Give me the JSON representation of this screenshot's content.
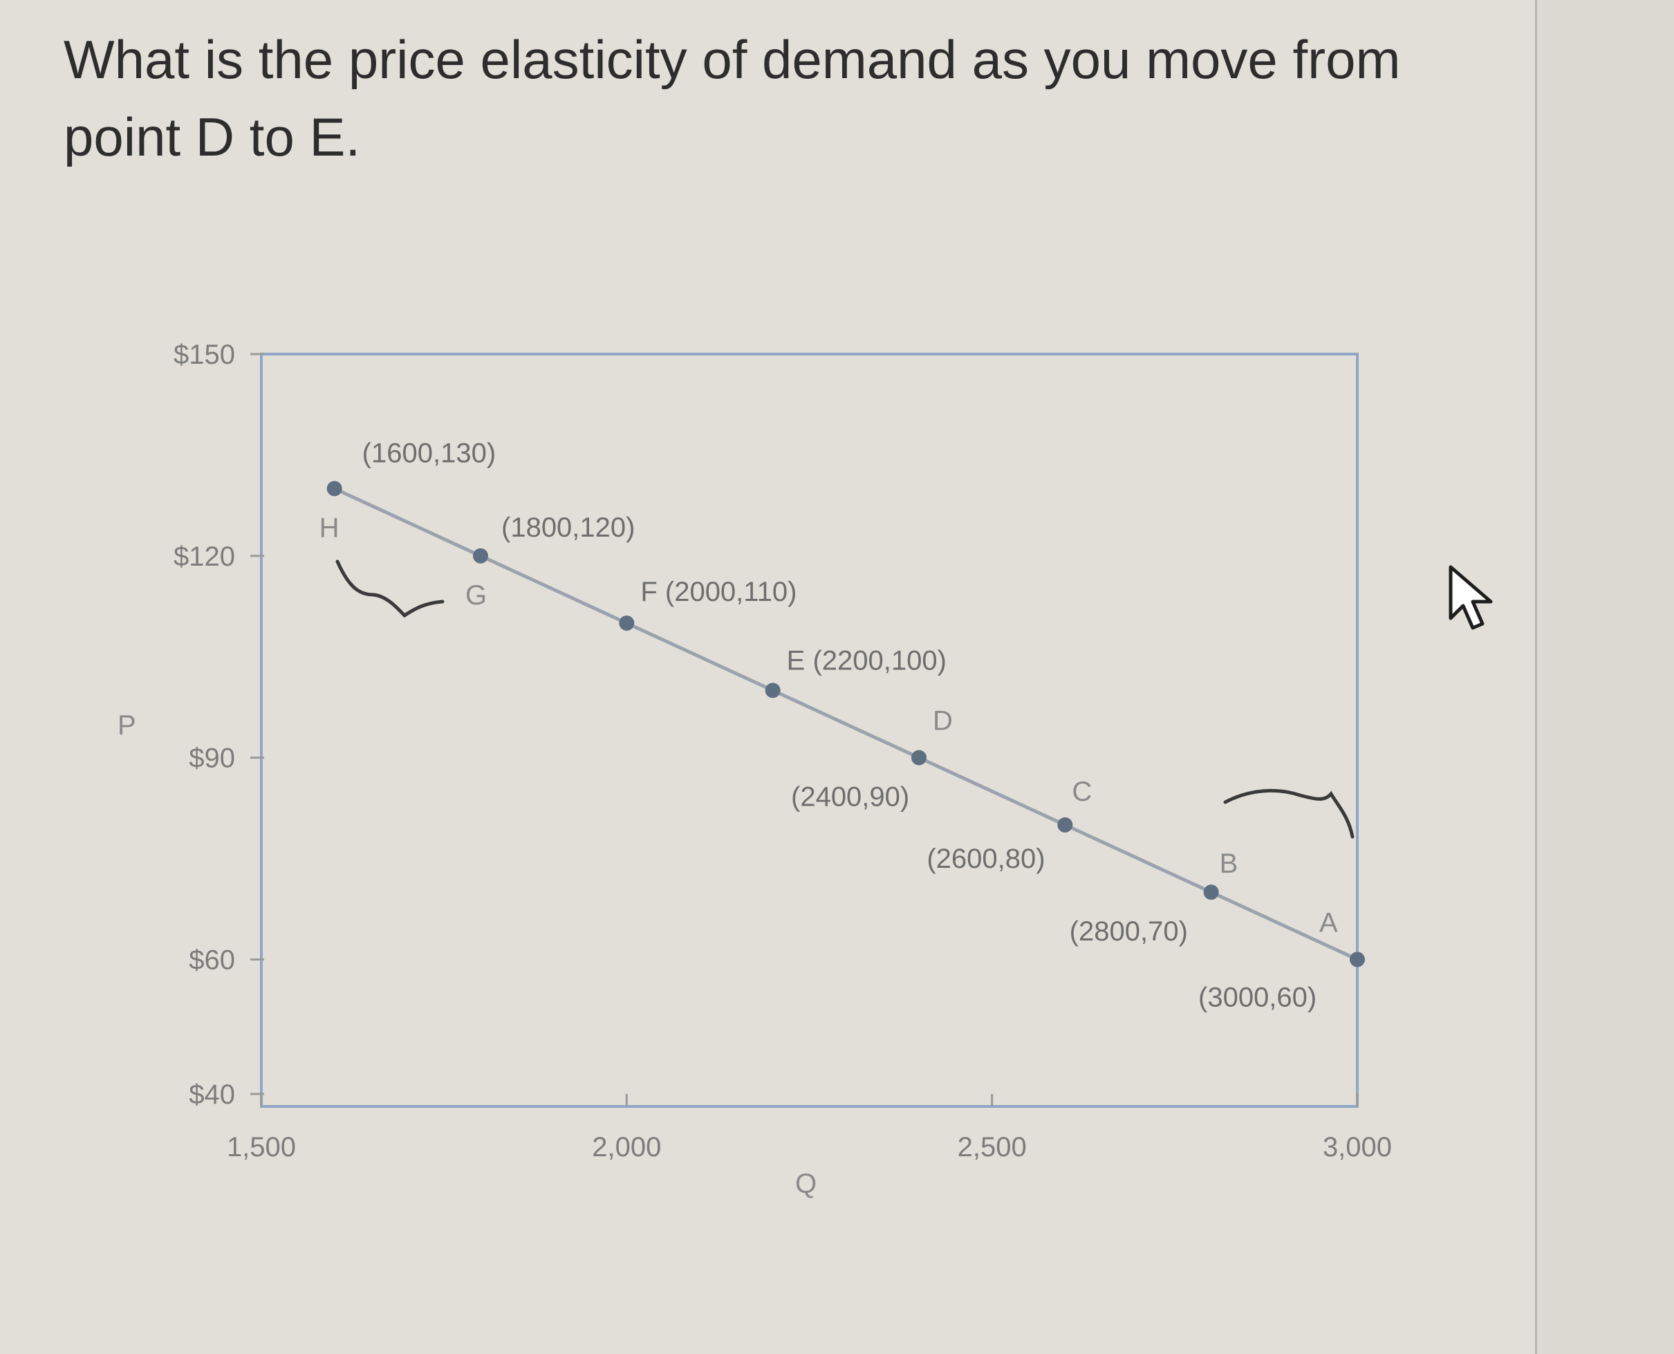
{
  "question": {
    "text": "What is the price elasticity of demand as you move from point D to E."
  },
  "colors": {
    "line": "#9aa3ad",
    "point": "#5f6f82",
    "frame": "#8fa6c7",
    "text": "#2d2d2d"
  },
  "chart_data": {
    "type": "line",
    "title": "",
    "xlabel": "Q",
    "ylabel": "P",
    "xlim": [
      1500,
      3000
    ],
    "ylim": [
      40,
      150
    ],
    "x_ticks": [
      {
        "value": 1500,
        "label": "1,500"
      },
      {
        "value": 2000,
        "label": "2,000"
      },
      {
        "value": 2500,
        "label": "2,500"
      },
      {
        "value": 3000,
        "label": "3,000"
      }
    ],
    "y_ticks": [
      {
        "value": 150,
        "label": "$150"
      },
      {
        "value": 120,
        "label": "$120"
      },
      {
        "value": 90,
        "label": "$90"
      },
      {
        "value": 60,
        "label": "$60"
      },
      {
        "value": 40,
        "label": "$40"
      }
    ],
    "grid": false,
    "legend": "none",
    "points": [
      {
        "letter": "H",
        "x": 1600,
        "y": 130,
        "coord_label": "(1600,130)"
      },
      {
        "letter": "G",
        "x": 1800,
        "y": 120,
        "coord_label": "(1800,120)"
      },
      {
        "letter": "F",
        "x": 2000,
        "y": 110,
        "coord_label": "F (2000,110)"
      },
      {
        "letter": "E",
        "x": 2200,
        "y": 100,
        "coord_label": "E (2200,100)"
      },
      {
        "letter": "D",
        "x": 2400,
        "y": 90,
        "coord_label": "(2400,90)"
      },
      {
        "letter": "C",
        "x": 2600,
        "y": 80,
        "coord_label": "(2600,80)"
      },
      {
        "letter": "B",
        "x": 2800,
        "y": 70,
        "coord_label": "(2800,70)"
      },
      {
        "letter": "A",
        "x": 3000,
        "y": 60,
        "coord_label": "(3000,60)"
      }
    ]
  }
}
